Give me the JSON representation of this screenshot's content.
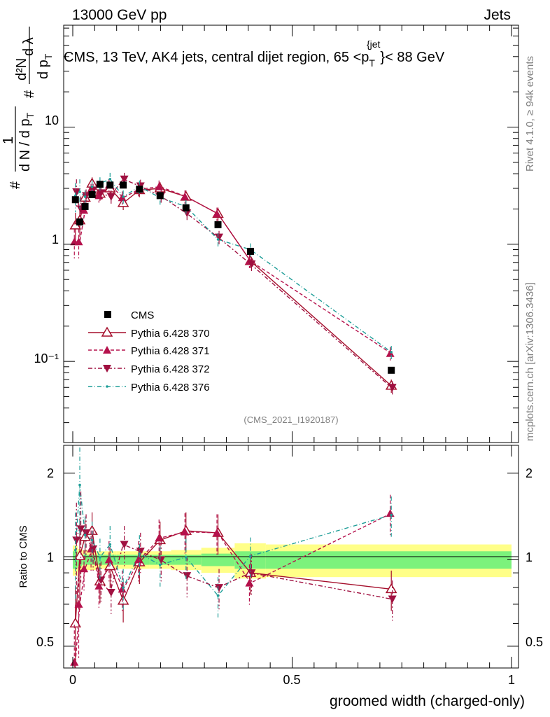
{
  "header": {
    "left": "13000 GeV pp",
    "right": "Jets"
  },
  "side_labels": {
    "rivet": "Rivet 4.1.0, ≥ 94k events",
    "mcplots": "mcplots.cern.ch [arXiv:1306.3436]"
  },
  "watermark": "(CMS_2021_I1920187)",
  "colors": {
    "cms": "#000000",
    "p370": "#a50f2c",
    "p371": "#b5114c",
    "p372": "#a01040",
    "p376": "#1f9e98",
    "band_inner": "#7cf27c",
    "band_outer": "#ffff88"
  },
  "chart_data": [
    {
      "type": "scatter",
      "title": "CMS, 13 TeV, AK4 jets, central dijet region, 65 <p_T^{jet}< 88 GeV",
      "title_parts": {
        "pre": "CMS, 13 TeV, AK4 jets, central dijet region, 65 <p",
        "sub": "T",
        "sup": "{jet",
        "post": "}< 88 GeV"
      },
      "ylabel_parts": [
        "1",
        "d N / d p",
        "T",
        "#",
        "d²N",
        "d p",
        "T",
        "d λ",
        "#"
      ],
      "yscale": "log",
      "xlim": [
        -0.02,
        1.0
      ],
      "ylim": [
        0.0203,
        74.1
      ],
      "ytick_labels": [
        "10⁻¹",
        "1",
        "10"
      ],
      "legend": {
        "placement": "middle-left",
        "entries": [
          "CMS",
          "Pythia 6.428 370",
          "Pythia 6.428 371",
          "Pythia 6.428 372",
          "Pythia 6.428 376"
        ]
      },
      "x": [
        0.006,
        0.016,
        0.028,
        0.044,
        0.062,
        0.085,
        0.115,
        0.152,
        0.199,
        0.258,
        0.331,
        0.405,
        0.726
      ],
      "series": [
        {
          "name": "CMS",
          "values": [
            2.4,
            1.55,
            2.1,
            2.65,
            3.25,
            3.2,
            3.2,
            2.95,
            2.6,
            2.05,
            1.47,
            0.87,
            0.084
          ]
        },
        {
          "name": "Pythia 6.428 370",
          "values": [
            1.45,
            1.6,
            2.5,
            3.3,
            2.7,
            3.0,
            2.25,
            2.9,
            3.0,
            2.55,
            1.82,
            0.72,
            0.062
          ]
        },
        {
          "name": "Pythia 6.428 371",
          "values": [
            1.05,
            1.05,
            1.95,
            2.9,
            2.6,
            3.2,
            2.5,
            2.95,
            3.1,
            2.55,
            1.82,
            0.72,
            0.117
          ]
        },
        {
          "name": "Pythia 6.428 372",
          "values": [
            2.8,
            2.0,
            2.6,
            2.9,
            2.75,
            2.55,
            3.6,
            3.15,
            2.6,
            1.85,
            1.15,
            0.68,
            0.06
          ]
        },
        {
          "name": "Pythia 6.428 376",
          "values": [
            2.6,
            2.8,
            2.55,
            3.1,
            3.3,
            3.6,
            2.55,
            3.1,
            2.5,
            2.1,
            1.1,
            0.9,
            0.12
          ]
        }
      ]
    },
    {
      "type": "line",
      "ylabel": "Ratio to CMS",
      "xlabel": "groomed width (charged-only)",
      "yscale": "log",
      "xlim": [
        -0.02,
        1.0
      ],
      "ylim": [
        0.42,
        2.5
      ],
      "xtick_labels": [
        "0",
        "0.5",
        "1"
      ],
      "ytick_labels": [
        "0.5",
        "1",
        "2"
      ],
      "x": [
        0.006,
        0.016,
        0.028,
        0.044,
        0.062,
        0.085,
        0.115,
        0.152,
        0.199,
        0.258,
        0.331,
        0.405,
        0.726
      ],
      "bands": {
        "edges": [
          0,
          0.011,
          0.021,
          0.035,
          0.053,
          0.071,
          0.1,
          0.13,
          0.174,
          0.224,
          0.293,
          0.369,
          0.44,
          1.0
        ],
        "inner": [
          0.07,
          0.05,
          0.04,
          0.04,
          0.04,
          0.04,
          0.04,
          0.04,
          0.04,
          0.04,
          0.05,
          0.07,
          0.07
        ],
        "outer": [
          0.12,
          0.09,
          0.08,
          0.08,
          0.07,
          0.07,
          0.07,
          0.07,
          0.07,
          0.08,
          0.1,
          0.14,
          0.13
        ]
      },
      "series": [
        {
          "name": "Pythia 6.428 370",
          "values": [
            0.6,
            1.03,
            1.2,
            1.26,
            0.84,
            0.95,
            0.72,
            0.98,
            1.17,
            1.26,
            1.24,
            0.9,
            0.79
          ]
        },
        {
          "name": "Pythia 6.428 371",
          "values": [
            0.44,
            0.7,
            0.93,
            1.09,
            0.81,
            1.0,
            0.79,
            1.0,
            1.19,
            1.25,
            1.24,
            0.83,
            1.45
          ]
        },
        {
          "name": "Pythia 6.428 372",
          "values": [
            1.17,
            1.28,
            1.24,
            1.09,
            0.85,
            0.77,
            1.13,
            1.07,
            1.0,
            0.88,
            0.8,
            0.9,
            0.73
          ]
        },
        {
          "name": "Pythia 6.428 376",
          "values": [
            1.08,
            1.82,
            1.22,
            1.17,
            1.02,
            1.13,
            0.8,
            1.05,
            0.96,
            1.02,
            0.75,
            1.03,
            1.43
          ]
        }
      ]
    }
  ]
}
